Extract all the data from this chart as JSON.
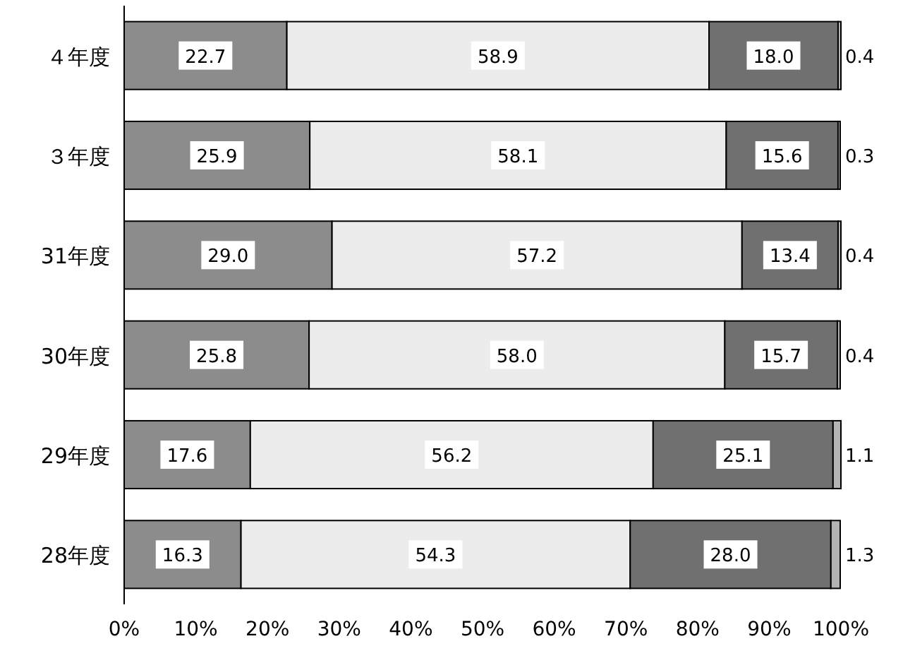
{
  "chart_data": {
    "type": "bar",
    "orientation": "horizontal",
    "stacked": true,
    "grid": false,
    "categories": [
      "４年度",
      "３年度",
      "31年度",
      "30年度",
      "29年度",
      "28年度"
    ],
    "series": [
      {
        "color": "#8c8c8c",
        "values": [
          22.7,
          25.9,
          29.0,
          25.8,
          17.6,
          16.3
        ],
        "value_labels": [
          "22.7",
          "25.9",
          "29.0",
          "25.8",
          "17.6",
          "16.3"
        ]
      },
      {
        "color": "#ececec",
        "values": [
          58.9,
          58.1,
          57.2,
          58.0,
          56.2,
          54.3
        ],
        "value_labels": [
          "58.9",
          "58.1",
          "57.2",
          "58.0",
          "56.2",
          "54.3"
        ]
      },
      {
        "color": "#707070",
        "values": [
          18.0,
          15.6,
          13.4,
          15.7,
          25.1,
          28.0
        ],
        "value_labels": [
          "18.0",
          "15.6",
          "13.4",
          "15.7",
          "25.1",
          "28.0"
        ]
      },
      {
        "color": "#b4b4b4",
        "values": [
          0.4,
          0.3,
          0.4,
          0.4,
          1.1,
          1.3
        ],
        "value_labels": [
          "0.4",
          "0.3",
          "0.4",
          "0.4",
          "1.1",
          "1.3"
        ]
      }
    ],
    "xlim": [
      0,
      100
    ],
    "xticks": [
      {
        "value": 0,
        "label": "0%"
      },
      {
        "value": 10,
        "label": "10%"
      },
      {
        "value": 20,
        "label": "20%"
      },
      {
        "value": 30,
        "label": "30%"
      },
      {
        "value": 40,
        "label": "40%"
      },
      {
        "value": 50,
        "label": "50%"
      },
      {
        "value": 60,
        "label": "60%"
      },
      {
        "value": 70,
        "label": "70%"
      },
      {
        "value": 80,
        "label": "80%"
      },
      {
        "value": 90,
        "label": "90%"
      },
      {
        "value": 100,
        "label": "100%"
      }
    ]
  }
}
